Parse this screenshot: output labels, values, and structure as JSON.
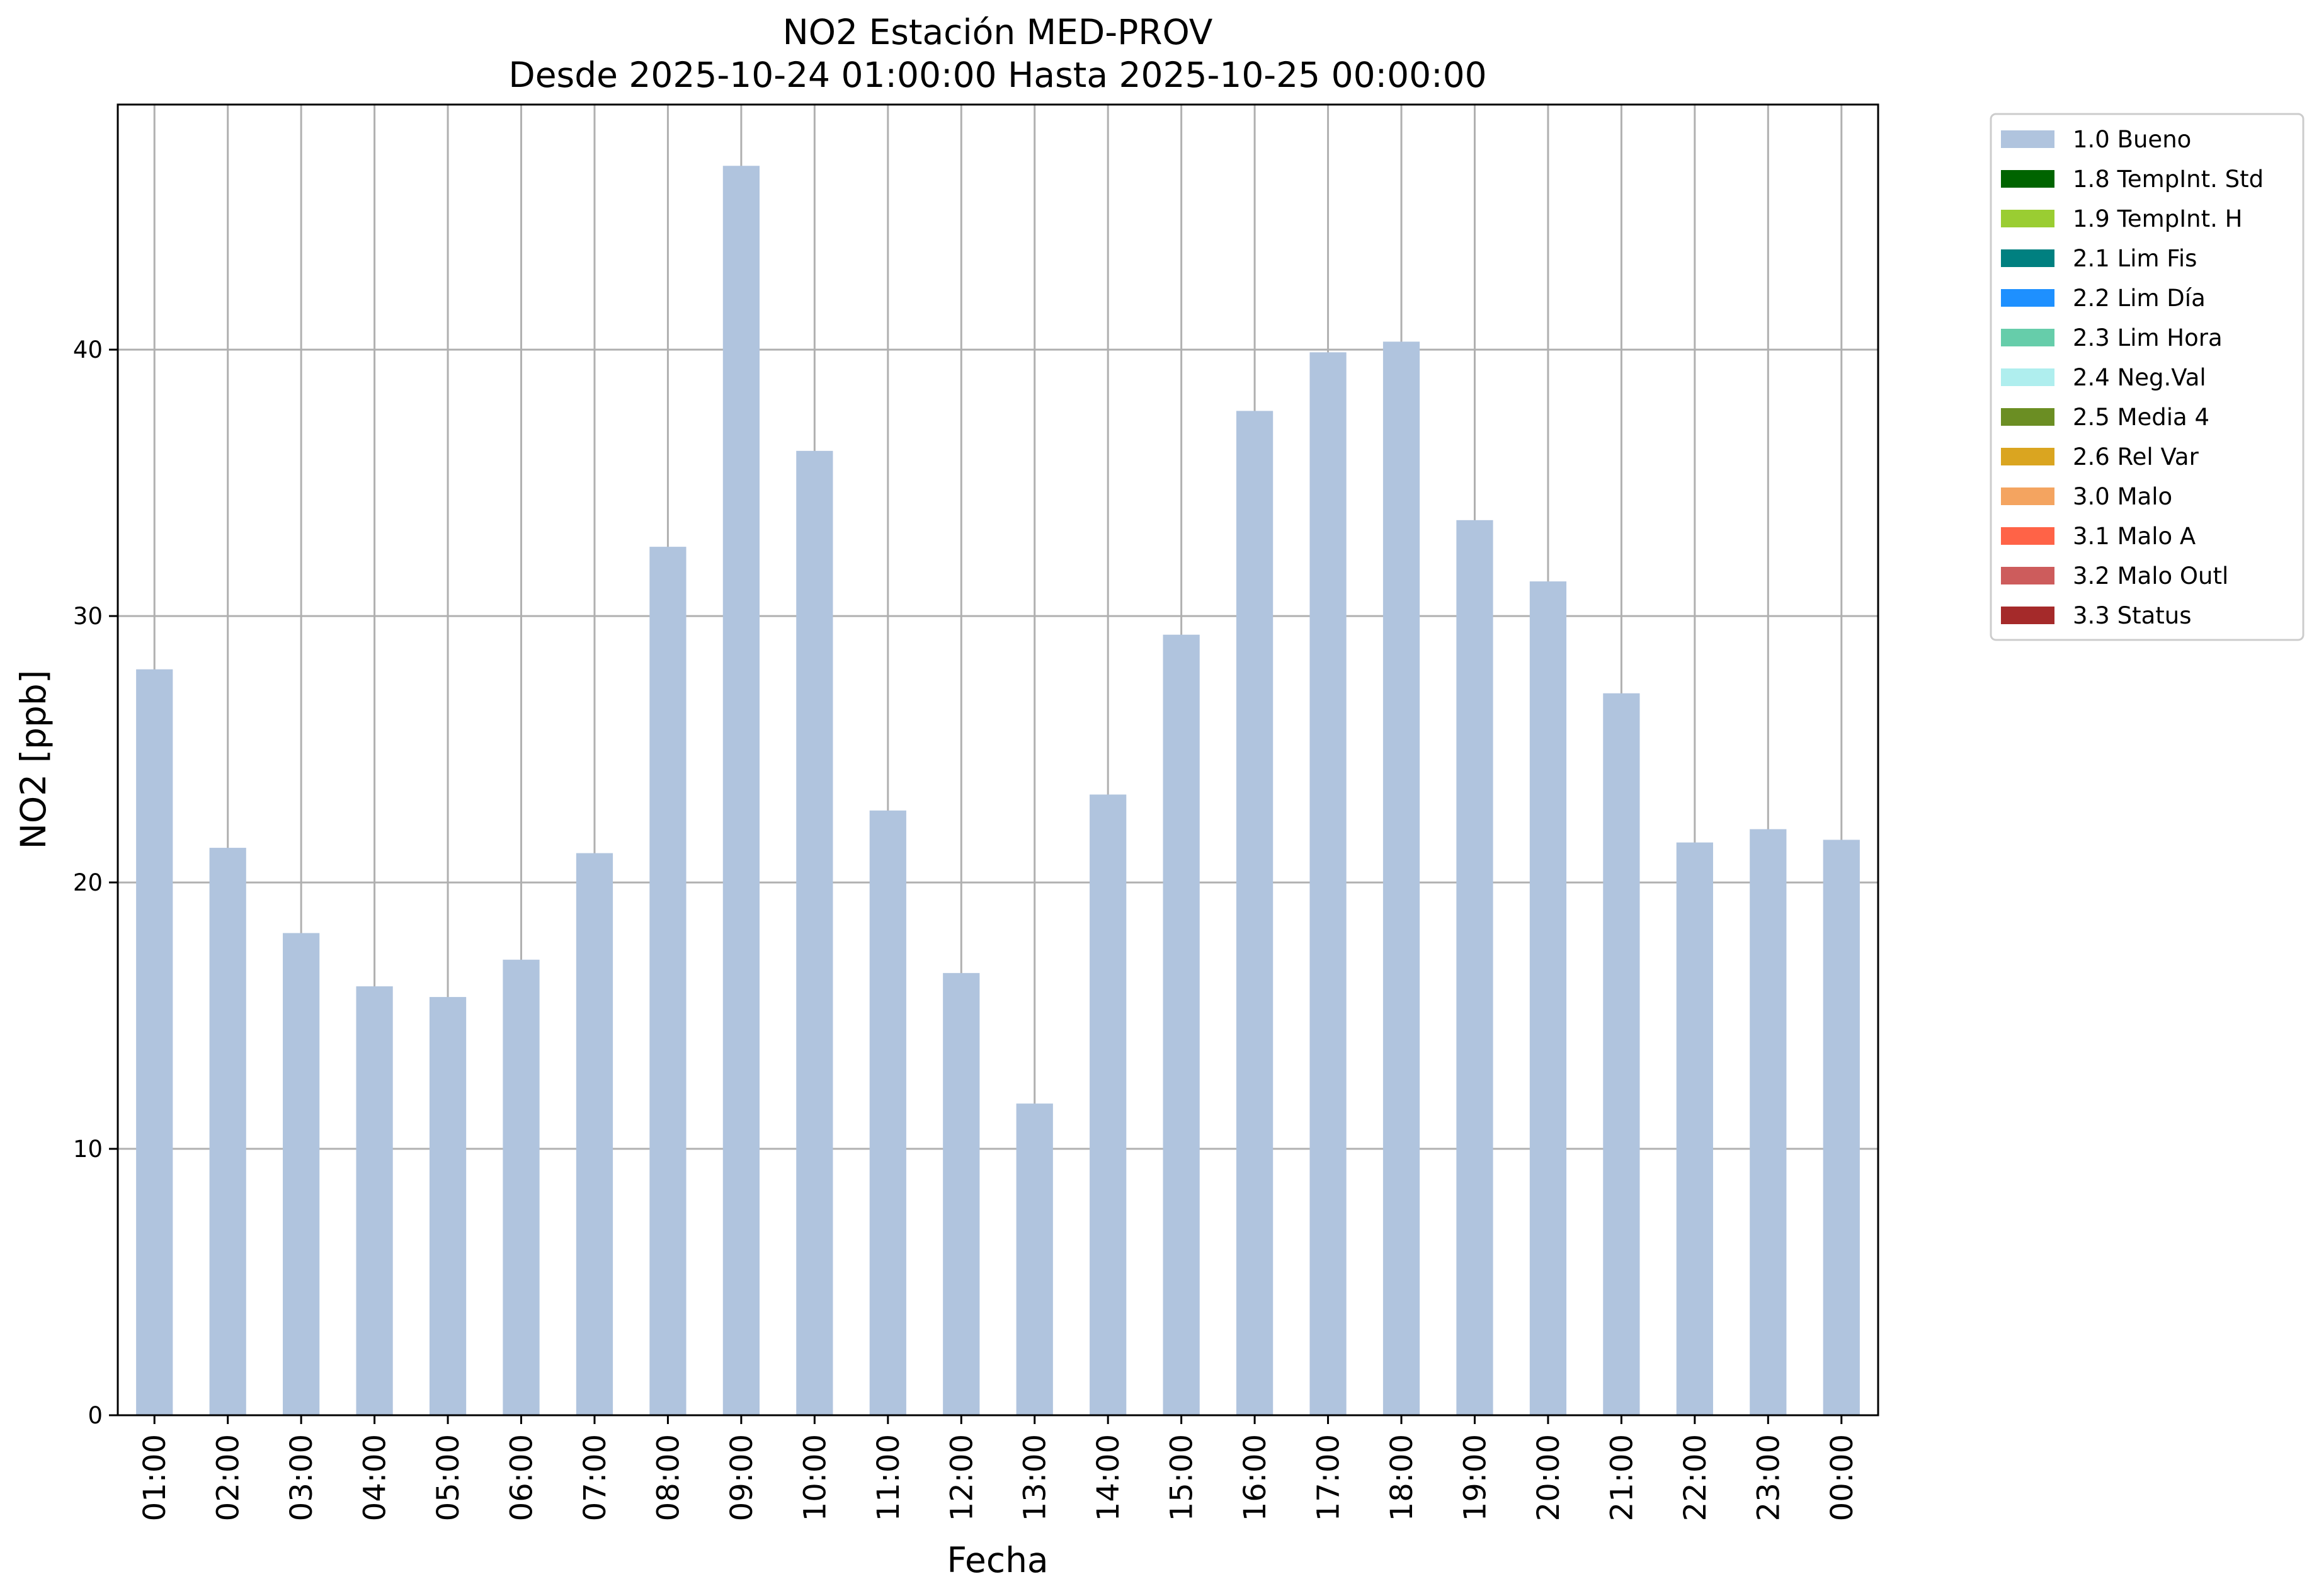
{
  "chart_data": {
    "type": "bar",
    "title": "NO2 Estación MED-PROV",
    "subtitle": "Desde 2025-10-24 01:00:00 Hasta 2025-10-25 00:00:00",
    "xlabel": "Fecha",
    "ylabel": "NO2 [ppb]",
    "ylim": [
      0,
      49.2
    ],
    "yticks": [
      0,
      10,
      20,
      30,
      40
    ],
    "grid": true,
    "legend_position": "outside-right",
    "categories": [
      "01:00",
      "02:00",
      "03:00",
      "04:00",
      "05:00",
      "06:00",
      "07:00",
      "08:00",
      "09:00",
      "10:00",
      "11:00",
      "12:00",
      "13:00",
      "14:00",
      "15:00",
      "16:00",
      "17:00",
      "18:00",
      "19:00",
      "20:00",
      "21:00",
      "22:00",
      "23:00",
      "00:00"
    ],
    "series": [
      {
        "name": "1.0 Bueno",
        "color": "#b0c4de",
        "values": [
          28.0,
          21.3,
          18.1,
          16.1,
          15.7,
          17.1,
          21.1,
          32.6,
          46.9,
          36.2,
          22.7,
          16.6,
          11.7,
          23.3,
          29.3,
          37.7,
          39.9,
          40.3,
          33.6,
          31.3,
          27.1,
          21.5,
          22.0,
          21.6
        ]
      }
    ],
    "legend": [
      {
        "label": "1.0 Bueno",
        "color": "#b0c4de"
      },
      {
        "label": "1.8 TempInt. Std",
        "color": "#006400"
      },
      {
        "label": "1.9 TempInt. H",
        "color": "#9acd32"
      },
      {
        "label": "2.1 Lim Fis",
        "color": "#008080"
      },
      {
        "label": "2.2 Lim Día",
        "color": "#1e90ff"
      },
      {
        "label": "2.3 Lim Hora",
        "color": "#66cdaa"
      },
      {
        "label": "2.4 Neg.Val",
        "color": "#afeeee"
      },
      {
        "label": "2.5 Media 4",
        "color": "#6b8e23"
      },
      {
        "label": "2.6 Rel Var",
        "color": "#daa520"
      },
      {
        "label": "3.0 Malo",
        "color": "#f4a460"
      },
      {
        "label": "3.1 Malo A",
        "color": "#ff6347"
      },
      {
        "label": "3.2 Malo Outl",
        "color": "#cd5c5c"
      },
      {
        "label": "3.3 Status",
        "color": "#a52a2a"
      }
    ]
  }
}
